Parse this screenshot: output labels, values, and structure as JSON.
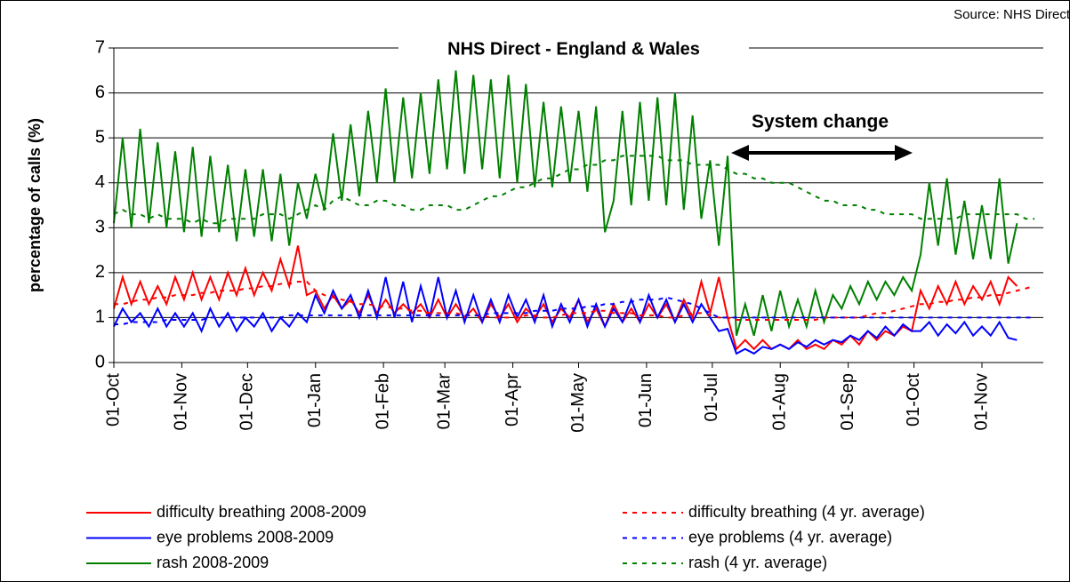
{
  "chart_data": {
    "type": "line",
    "title": "NHS Direct - England & Wales",
    "source": "Source: NHS Direct",
    "annotation": "System change",
    "y_label": "percentage of calls (%)",
    "ylim": [
      0,
      7
    ],
    "yticks": [
      0,
      1,
      2,
      3,
      4,
      5,
      6,
      7
    ],
    "grid": true,
    "xlim": [
      0,
      424
    ],
    "xticks": [
      {
        "value": 0,
        "label": "01-Oct"
      },
      {
        "value": 31,
        "label": "01-Nov"
      },
      {
        "value": 61,
        "label": "01-Dec"
      },
      {
        "value": 92,
        "label": "01-Jan"
      },
      {
        "value": 123,
        "label": "01-Feb"
      },
      {
        "value": 151,
        "label": "01-Mar"
      },
      {
        "value": 182,
        "label": "01-Apr"
      },
      {
        "value": 212,
        "label": "01-May"
      },
      {
        "value": 243,
        "label": "01-Jun"
      },
      {
        "value": 273,
        "label": "01-Jul"
      },
      {
        "value": 304,
        "label": "01-Aug"
      },
      {
        "value": 335,
        "label": "01-Sep"
      },
      {
        "value": 365,
        "label": "01-Oct"
      },
      {
        "value": 396,
        "label": "01-Nov"
      }
    ],
    "x": [
      0,
      4,
      8,
      12,
      16,
      20,
      24,
      28,
      32,
      36,
      40,
      44,
      48,
      52,
      56,
      60,
      64,
      68,
      72,
      76,
      80,
      84,
      88,
      92,
      96,
      100,
      104,
      108,
      112,
      116,
      120,
      124,
      128,
      132,
      136,
      140,
      144,
      148,
      152,
      156,
      160,
      164,
      168,
      172,
      176,
      180,
      184,
      188,
      192,
      196,
      200,
      204,
      208,
      212,
      216,
      220,
      224,
      228,
      232,
      236,
      240,
      244,
      248,
      252,
      256,
      260,
      264,
      268,
      272,
      276,
      280,
      284,
      288,
      292,
      296,
      300,
      304,
      308,
      312,
      316,
      320,
      324,
      328,
      332,
      336,
      340,
      344,
      348,
      352,
      356,
      360,
      364,
      368,
      372,
      376,
      380,
      384,
      388,
      392,
      396,
      400,
      404,
      408,
      412,
      416,
      420
    ],
    "series": [
      {
        "name": "difficulty breathing 2008-2009",
        "color": "#ff0000",
        "dash": false,
        "values": [
          1.2,
          1.9,
          1.3,
          1.8,
          1.3,
          1.7,
          1.3,
          1.9,
          1.4,
          2.0,
          1.4,
          1.9,
          1.4,
          2.0,
          1.5,
          2.1,
          1.5,
          2.0,
          1.6,
          2.3,
          1.7,
          2.6,
          1.5,
          1.6,
          1.2,
          1.5,
          1.2,
          1.4,
          1.1,
          1.5,
          1.1,
          1.4,
          1.1,
          1.3,
          1.1,
          1.3,
          1.0,
          1.4,
          1.0,
          1.3,
          1.0,
          1.2,
          0.9,
          1.3,
          1.0,
          1.3,
          0.9,
          1.2,
          1.0,
          1.3,
          0.9,
          1.2,
          1.0,
          1.4,
          0.9,
          1.2,
          0.8,
          1.3,
          0.9,
          1.2,
          0.9,
          1.3,
          1.0,
          1.3,
          0.9,
          1.4,
          1.0,
          1.8,
          1.1,
          1.9,
          1.0,
          0.3,
          0.5,
          0.3,
          0.5,
          0.3,
          0.4,
          0.3,
          0.5,
          0.3,
          0.4,
          0.3,
          0.5,
          0.4,
          0.6,
          0.4,
          0.7,
          0.5,
          0.7,
          0.6,
          0.8,
          0.7,
          1.6,
          1.2,
          1.7,
          1.3,
          1.8,
          1.3,
          1.7,
          1.4,
          1.8,
          1.3,
          1.9,
          1.7,
          null,
          null
        ]
      },
      {
        "name": "eye problems 2008-2009",
        "color": "#0000ff",
        "dash": false,
        "values": [
          0.8,
          1.2,
          0.9,
          1.1,
          0.8,
          1.2,
          0.8,
          1.1,
          0.8,
          1.1,
          0.7,
          1.2,
          0.8,
          1.1,
          0.7,
          1.0,
          0.8,
          1.1,
          0.7,
          1.0,
          0.8,
          1.1,
          0.9,
          1.5,
          1.1,
          1.6,
          1.2,
          1.5,
          1.0,
          1.6,
          1.0,
          1.9,
          1.0,
          1.8,
          0.9,
          1.7,
          1.0,
          1.9,
          1.0,
          1.6,
          0.9,
          1.5,
          0.9,
          1.4,
          0.9,
          1.5,
          1.0,
          1.4,
          0.9,
          1.5,
          0.8,
          1.3,
          0.9,
          1.4,
          0.8,
          1.3,
          0.8,
          1.2,
          0.9,
          1.4,
          0.9,
          1.5,
          1.0,
          1.4,
          0.9,
          1.3,
          0.9,
          1.3,
          1.0,
          0.7,
          0.75,
          0.2,
          0.3,
          0.2,
          0.35,
          0.3,
          0.4,
          0.3,
          0.45,
          0.35,
          0.5,
          0.4,
          0.5,
          0.45,
          0.6,
          0.5,
          0.7,
          0.55,
          0.8,
          0.6,
          0.85,
          0.7,
          0.7,
          0.9,
          0.6,
          0.85,
          0.65,
          0.9,
          0.6,
          0.8,
          0.6,
          0.9,
          0.55,
          0.5,
          null,
          null
        ]
      },
      {
        "name": "rash 2008-2009",
        "color": "#008000",
        "dash": false,
        "values": [
          3.1,
          5.0,
          3.0,
          5.2,
          3.1,
          4.9,
          3.0,
          4.7,
          2.9,
          4.8,
          2.8,
          4.6,
          2.9,
          4.4,
          2.7,
          4.3,
          2.8,
          4.3,
          2.7,
          4.2,
          2.6,
          4.0,
          3.2,
          4.2,
          3.4,
          5.1,
          3.6,
          5.3,
          3.7,
          5.6,
          4.0,
          6.1,
          4.0,
          5.9,
          4.1,
          6.0,
          4.2,
          6.3,
          4.3,
          6.5,
          4.2,
          6.4,
          4.3,
          6.3,
          4.1,
          6.4,
          4.0,
          6.2,
          3.9,
          5.8,
          3.9,
          5.7,
          4.0,
          5.6,
          3.8,
          5.7,
          2.9,
          3.6,
          5.6,
          3.5,
          5.8,
          3.6,
          5.9,
          3.5,
          6.0,
          3.4,
          5.5,
          3.2,
          4.5,
          2.6,
          4.6,
          0.6,
          1.3,
          0.6,
          1.5,
          0.7,
          1.6,
          0.8,
          1.4,
          0.8,
          1.6,
          0.9,
          1.5,
          1.2,
          1.7,
          1.3,
          1.8,
          1.4,
          1.8,
          1.5,
          1.9,
          1.6,
          2.4,
          4.0,
          2.6,
          4.1,
          2.4,
          3.6,
          2.3,
          3.5,
          2.3,
          4.1,
          2.2,
          3.1,
          null,
          null
        ]
      },
      {
        "name": "difficulty breathing (4 yr. average)",
        "color": "#ff0000",
        "dash": true,
        "values": [
          1.3,
          1.3,
          1.35,
          1.4,
          1.4,
          1.45,
          1.45,
          1.5,
          1.5,
          1.5,
          1.55,
          1.55,
          1.6,
          1.6,
          1.6,
          1.65,
          1.65,
          1.7,
          1.7,
          1.75,
          1.75,
          1.8,
          1.8,
          1.6,
          1.5,
          1.45,
          1.4,
          1.35,
          1.3,
          1.3,
          1.25,
          1.25,
          1.2,
          1.2,
          1.15,
          1.15,
          1.1,
          1.1,
          1.1,
          1.1,
          1.05,
          1.05,
          1.05,
          1.0,
          1.0,
          1.0,
          1.0,
          1.05,
          1.05,
          1.0,
          1.0,
          1.05,
          1.1,
          1.1,
          1.1,
          1.15,
          1.15,
          1.1,
          1.1,
          1.1,
          1.05,
          1.05,
          1.05,
          1.0,
          1.0,
          1.05,
          1.1,
          1.1,
          1.05,
          1.0,
          1.0,
          0.95,
          0.95,
          0.95,
          0.95,
          0.95,
          0.95,
          0.95,
          0.95,
          0.95,
          0.95,
          1.0,
          1.0,
          1.0,
          1.0,
          1.0,
          1.05,
          1.1,
          1.1,
          1.15,
          1.2,
          1.25,
          1.3,
          1.3,
          1.35,
          1.35,
          1.4,
          1.4,
          1.45,
          1.45,
          1.5,
          1.5,
          1.55,
          1.6,
          1.65,
          1.7
        ]
      },
      {
        "name": "eye problems (4 yr. average)",
        "color": "#0000ff",
        "dash": true,
        "values": [
          0.85,
          0.85,
          0.9,
          0.9,
          0.9,
          0.9,
          0.95,
          0.95,
          0.95,
          0.95,
          0.95,
          1.0,
          1.0,
          1.0,
          1.0,
          1.0,
          1.0,
          1.0,
          1.0,
          1.0,
          1.05,
          1.05,
          1.05,
          1.05,
          1.05,
          1.05,
          1.05,
          1.05,
          1.05,
          1.05,
          1.05,
          1.05,
          1.05,
          1.05,
          1.05,
          1.05,
          1.05,
          1.05,
          1.05,
          1.05,
          1.05,
          1.05,
          1.05,
          1.1,
          1.1,
          1.1,
          1.1,
          1.1,
          1.15,
          1.15,
          1.15,
          1.2,
          1.2,
          1.2,
          1.25,
          1.25,
          1.3,
          1.3,
          1.35,
          1.35,
          1.4,
          1.4,
          1.4,
          1.45,
          1.4,
          1.35,
          1.3,
          1.2,
          1.1,
          1.0,
          1.0,
          1.0,
          1.0,
          1.0,
          1.0,
          1.0,
          1.0,
          1.0,
          1.0,
          1.0,
          1.0,
          1.0,
          1.0,
          1.0,
          1.0,
          1.0,
          1.0,
          1.0,
          1.0,
          1.0,
          1.0,
          1.0,
          1.0,
          1.0,
          1.0,
          1.0,
          1.0,
          1.0,
          1.0,
          1.0,
          1.0,
          1.0,
          1.0,
          1.0,
          1.0,
          1.0
        ]
      },
      {
        "name": "rash (4 yr. average)",
        "color": "#008000",
        "dash": true,
        "values": [
          3.3,
          3.4,
          3.3,
          3.3,
          3.2,
          3.3,
          3.2,
          3.2,
          3.2,
          3.1,
          3.2,
          3.1,
          3.1,
          3.2,
          3.2,
          3.2,
          3.2,
          3.3,
          3.3,
          3.3,
          3.2,
          3.3,
          3.4,
          3.5,
          3.4,
          3.6,
          3.7,
          3.6,
          3.5,
          3.5,
          3.6,
          3.6,
          3.5,
          3.5,
          3.4,
          3.4,
          3.5,
          3.5,
          3.5,
          3.4,
          3.4,
          3.5,
          3.6,
          3.7,
          3.7,
          3.8,
          3.9,
          3.9,
          4.0,
          4.1,
          4.1,
          4.2,
          4.3,
          4.3,
          4.4,
          4.4,
          4.5,
          4.5,
          4.6,
          4.6,
          4.6,
          4.6,
          4.6,
          4.5,
          4.5,
          4.5,
          4.4,
          4.4,
          4.4,
          4.4,
          4.3,
          4.2,
          4.2,
          4.1,
          4.1,
          4.0,
          4.0,
          4.0,
          3.9,
          3.8,
          3.7,
          3.6,
          3.6,
          3.5,
          3.5,
          3.5,
          3.4,
          3.4,
          3.3,
          3.3,
          3.3,
          3.3,
          3.2,
          3.2,
          3.2,
          3.2,
          3.2,
          3.3,
          3.3,
          3.3,
          3.3,
          3.3,
          3.3,
          3.3,
          3.2,
          3.2
        ]
      }
    ]
  }
}
